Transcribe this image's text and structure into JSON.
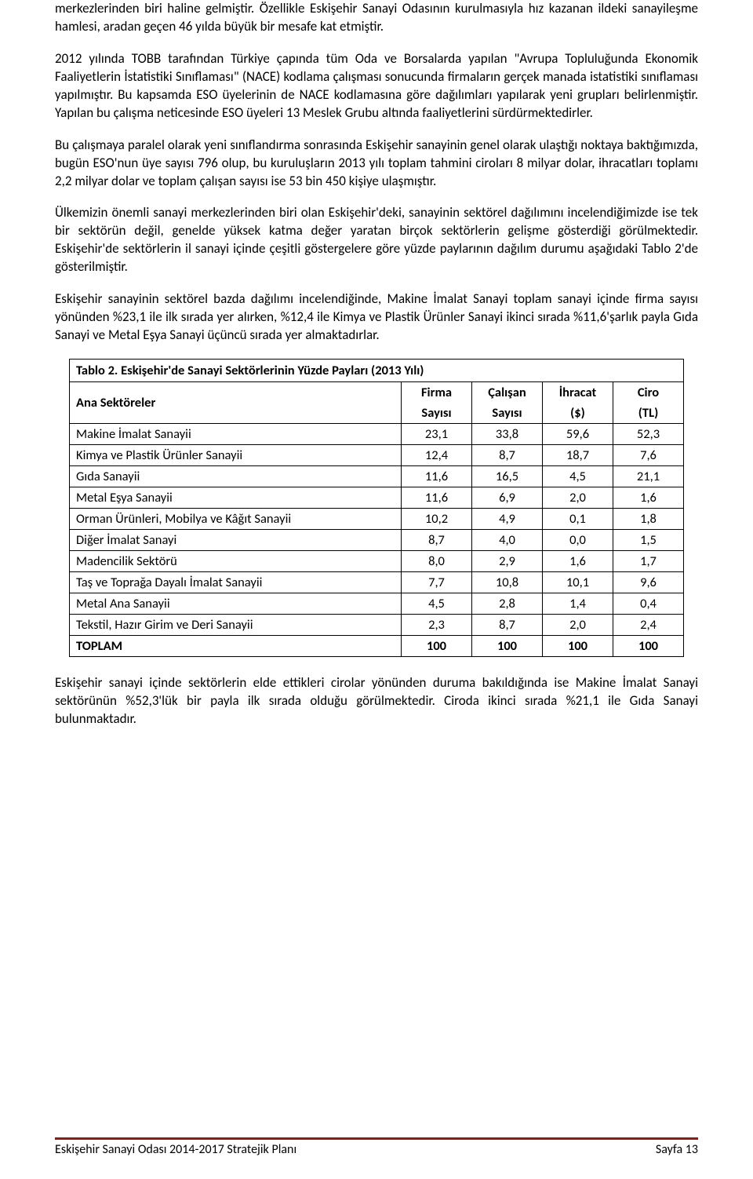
{
  "paragraphs": {
    "p1": "merkezlerinden biri haline gelmiştir. Özellikle Eskişehir Sanayi Odasının kurulmasıyla hız kazanan ildeki sanayileşme hamlesi, aradan geçen 46 yılda büyük bir mesafe kat etmiştir.",
    "p2": "2012 yılında TOBB tarafından Türkiye çapında tüm Oda ve Borsalarda yapılan \"Avrupa Topluluğunda Ekonomik Faaliyetlerin İstatistiki Sınıflaması\" (NACE) kodlama çalışması sonucunda firmaların gerçek manada istatistiki sınıflaması yapılmıştır. Bu kapsamda ESO üyelerinin de NACE kodlamasına göre dağılımları yapılarak yeni grupları belirlenmiştir. Yapılan bu çalışma neticesinde ESO üyeleri 13 Meslek Grubu altında faaliyetlerini sürdürmektedirler.",
    "p3": "Bu çalışmaya paralel olarak yeni sınıflandırma sonrasında Eskişehir sanayinin genel olarak ulaştığı noktaya baktığımızda, bugün ESO'nun üye sayısı 796 olup, bu kuruluşların 2013 yılı toplam tahmini ciroları 8 milyar dolar, ihracatları toplamı 2,2 milyar dolar ve toplam çalışan sayısı ise 53 bin 450 kişiye ulaşmıştır.",
    "p4": "Ülkemizin önemli sanayi merkezlerinden biri olan Eskişehir'deki, sanayinin sektörel dağılımını incelendiğimizde ise tek bir sektörün değil, genelde yüksek katma değer yaratan birçok sektörlerin gelişme gösterdiği görülmektedir. Eskişehir'de sektörlerin il sanayi içinde çeşitli göstergelere göre yüzde paylarının dağılım durumu aşağıdaki Tablo 2'de gösterilmiştir.",
    "p5": "Eskişehir sanayinin sektörel bazda dağılımı incelendiğinde, Makine İmalat Sanayi toplam sanayi içinde firma sayısı yönünden %23,1 ile ilk sırada yer alırken, %12,4 ile Kimya ve Plastik Ürünler Sanayi ikinci sırada %11,6'şarlık payla Gıda Sanayi ve Metal Eşya Sanayi üçüncü sırada yer almaktadırlar.",
    "p6": "Eskişehir sanayi içinde sektörlerin elde ettikleri cirolar yönünden duruma bakıldığında ise Makine İmalat Sanayi sektörünün %52,3'lük bir payla ilk sırada olduğu görülmektedir. Ciroda ikinci sırada %21,1 ile Gıda Sanayi bulunmaktadır."
  },
  "table": {
    "title": "Tablo 2. Eskişehir'de Sanayi Sektörlerinin Yüzde Payları (2013 Yılı)",
    "headers": {
      "sector": "Ana Sektöreler",
      "c1a": "Firma",
      "c1b": "Sayısı",
      "c2a": "Çalışan",
      "c2b": "Sayısı",
      "c3a": "İhracat",
      "c3b": "($)",
      "c4a": "Ciro",
      "c4b": "(TL)"
    },
    "rows": [
      {
        "sector": "Makine İmalat Sanayii",
        "v": [
          "23,1",
          "33,8",
          "59,6",
          "52,3"
        ]
      },
      {
        "sector": "Kimya ve Plastik Ürünler Sanayii",
        "v": [
          "12,4",
          "8,7",
          "18,7",
          "7,6"
        ]
      },
      {
        "sector": "Gıda Sanayii",
        "v": [
          "11,6",
          "16,5",
          "4,5",
          "21,1"
        ]
      },
      {
        "sector": "Metal Eşya Sanayii",
        "v": [
          "11,6",
          "6,9",
          "2,0",
          "1,6"
        ]
      },
      {
        "sector": "Orman Ürünleri, Mobilya ve Kâğıt Sanayii",
        "v": [
          "10,2",
          "4,9",
          "0,1",
          "1,8"
        ]
      },
      {
        "sector": "Diğer İmalat Sanayi",
        "v": [
          "8,7",
          "4,0",
          "0,0",
          "1,5"
        ]
      },
      {
        "sector": "Madencilik Sektörü",
        "v": [
          "8,0",
          "2,9",
          "1,6",
          "1,7"
        ]
      },
      {
        "sector": "Taş ve Toprağa Dayalı İmalat Sanayii",
        "v": [
          "7,7",
          "10,8",
          "10,1",
          "9,6"
        ]
      },
      {
        "sector": "Metal Ana Sanayii",
        "v": [
          "4,5",
          "2,8",
          "1,4",
          "0,4"
        ]
      },
      {
        "sector": "Tekstil, Hazır Girim ve Deri Sanayii",
        "v": [
          "2,3",
          "8,7",
          "2,0",
          "2,4"
        ]
      }
    ],
    "total": {
      "label": "TOPLAM",
      "v": [
        "100",
        "100",
        "100",
        "100"
      ]
    }
  },
  "footer": {
    "left": "Eskişehir Sanayi Odası 2014-2017 Stratejik Planı",
    "right": "Sayfa 13"
  },
  "colors": {
    "footer_bar": "#8b1a1a",
    "text": "#000000",
    "background": "#ffffff",
    "border": "#000000"
  },
  "fonts": {
    "body_size_pt": 12.5,
    "family": "Calibri"
  }
}
